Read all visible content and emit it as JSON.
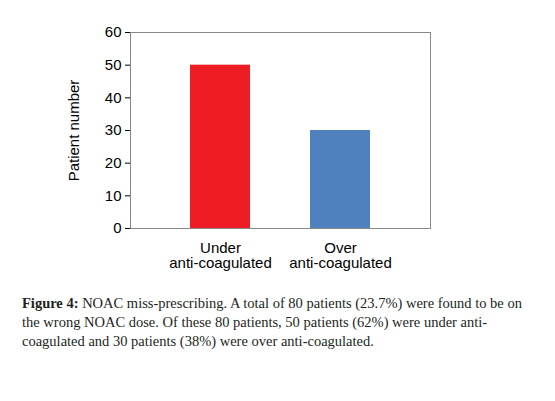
{
  "chart_data": {
    "type": "bar",
    "categories": [
      "Under\nanti-coagulated",
      "Over\nanti-coagulated"
    ],
    "values": [
      50,
      30
    ],
    "colors": [
      "#ee1c24",
      "#4f81bd"
    ],
    "y_label": "Patient number",
    "ylim": [
      0,
      60
    ],
    "yticks": [
      0,
      10,
      20,
      30,
      40,
      50,
      60
    ],
    "grid": false,
    "caption_label": "Figure 4:",
    "caption": "NOAC miss-prescribing. A total of 80 patients (23.7%) were found to be on the wrong NOAC dose. Of these 80 patients, 50 patients (62%) were under anti-coagulated and 30 patients (38%) were over anti-coagulated."
  }
}
